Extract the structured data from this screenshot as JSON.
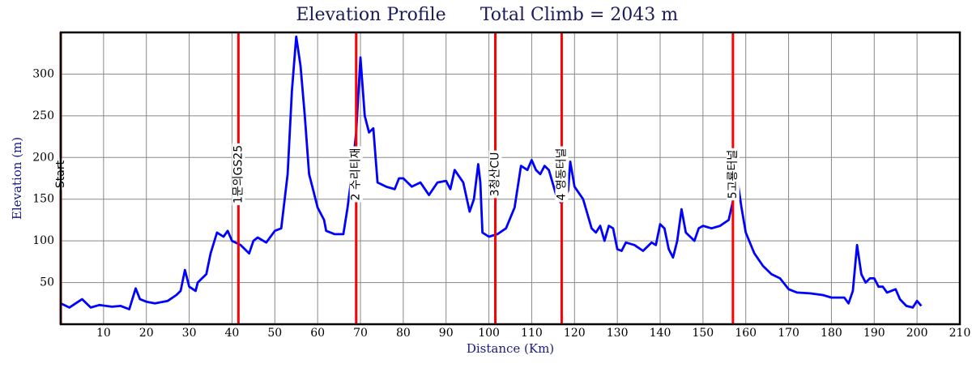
{
  "chart_data": {
    "type": "line",
    "title": "Elevation Profile",
    "subtitle": "Total Climb = 2043 m",
    "x_label": "Distance (Km)",
    "y_label": "Elevation (m)",
    "xlim": [
      0,
      210
    ],
    "ylim": [
      0,
      350
    ],
    "xticks": [
      10,
      20,
      30,
      40,
      50,
      60,
      70,
      80,
      90,
      100,
      110,
      120,
      130,
      140,
      150,
      160,
      170,
      180,
      190,
      200,
      210
    ],
    "yticks": [
      50,
      100,
      150,
      200,
      250,
      300
    ],
    "grid": true,
    "color": "#0000ff",
    "marker_color": "#ff0000",
    "markers": [
      {
        "x": 0,
        "label": "Start"
      },
      {
        "x": 41.5,
        "label": "1문의GS25"
      },
      {
        "x": 69,
        "label": "2 수리티재"
      },
      {
        "x": 101.5,
        "label": "3청산CU"
      },
      {
        "x": 117,
        "label": "4 영동터널"
      },
      {
        "x": 157,
        "label": "5고룡터널"
      }
    ],
    "x": [
      0,
      2,
      5,
      7,
      9,
      12,
      14,
      16,
      17.5,
      18.5,
      20,
      22,
      25,
      27,
      28,
      29,
      30,
      31.5,
      32,
      33,
      34,
      35,
      36.5,
      38,
      39,
      40,
      42,
      44,
      45,
      46,
      48,
      50,
      51.5,
      53,
      54,
      55,
      56,
      57,
      58,
      59,
      60,
      61.5,
      62,
      64,
      66,
      67,
      68,
      69,
      70,
      71,
      72,
      73,
      74,
      76,
      78,
      79,
      80,
      82,
      84,
      86,
      88,
      90,
      91,
      92,
      94,
      95.5,
      96.5,
      97.5,
      98,
      98.5,
      100,
      102,
      104,
      106,
      107.5,
      109,
      110,
      111,
      112,
      113,
      114,
      116,
      117,
      118.5,
      119,
      120,
      122,
      124,
      125,
      126,
      127,
      128,
      129,
      130,
      131,
      132,
      134,
      136,
      138,
      139,
      140,
      141,
      142,
      143,
      144,
      145,
      146,
      148,
      149,
      150,
      152,
      154,
      156,
      157,
      158,
      159,
      160,
      162,
      164,
      166,
      168,
      170,
      172,
      175,
      178,
      180,
      183,
      184,
      185,
      186,
      187,
      188,
      189,
      190,
      191,
      192,
      193,
      195,
      196,
      197.5,
      199,
      200,
      201
    ],
    "values": [
      25,
      20,
      30,
      20,
      23,
      21,
      22,
      18,
      43,
      30,
      27,
      25,
      28,
      35,
      40,
      65,
      45,
      40,
      50,
      55,
      60,
      85,
      110,
      105,
      112,
      100,
      95,
      85,
      100,
      104,
      98,
      112,
      115,
      180,
      280,
      345,
      310,
      250,
      180,
      160,
      140,
      125,
      112,
      108,
      108,
      140,
      180,
      230,
      320,
      250,
      230,
      235,
      170,
      165,
      162,
      175,
      175,
      165,
      170,
      155,
      170,
      172,
      162,
      185,
      170,
      135,
      150,
      192,
      170,
      110,
      105,
      108,
      115,
      140,
      190,
      185,
      197,
      185,
      180,
      190,
      185,
      150,
      145,
      160,
      195,
      165,
      150,
      115,
      110,
      118,
      100,
      118,
      115,
      90,
      88,
      98,
      95,
      88,
      98,
      95,
      120,
      115,
      90,
      80,
      100,
      138,
      110,
      100,
      115,
      118,
      115,
      118,
      125,
      148,
      175,
      140,
      110,
      85,
      70,
      60,
      55,
      42,
      38,
      37,
      35,
      32,
      32,
      25,
      40,
      95,
      60,
      50,
      55,
      55,
      45,
      45,
      38,
      42,
      30,
      22,
      20,
      28,
      22
    ]
  }
}
